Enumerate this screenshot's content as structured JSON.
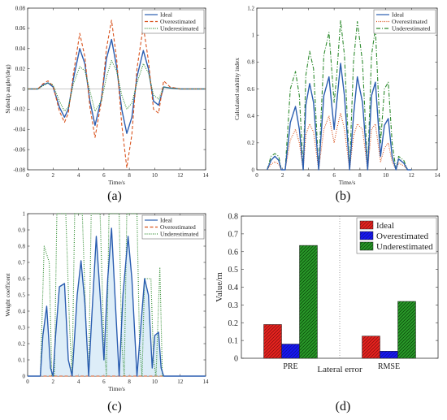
{
  "chart_data": [
    {
      "id": "a",
      "type": "line",
      "caption": "(a)",
      "xlabel": "Time/s",
      "ylabel": "Sideslip angle/(deg)",
      "xlim": [
        0,
        14
      ],
      "ylim": [
        -0.08,
        0.08
      ],
      "xticks": [
        0,
        2,
        4,
        6,
        8,
        10,
        12,
        14
      ],
      "yticks": [
        -0.08,
        -0.06,
        -0.04,
        -0.02,
        0,
        0.02,
        0.04,
        0.06,
        0.08
      ],
      "legend_position": "top-right",
      "series": [
        {
          "name": "Ideal",
          "color": "#2a5db0",
          "style": "solid",
          "x": [
            0,
            0.8,
            1.2,
            1.6,
            2.0,
            2.5,
            2.9,
            3.2,
            3.6,
            4.1,
            4.5,
            4.9,
            5.3,
            5.8,
            6.2,
            6.6,
            7.0,
            7.4,
            7.8,
            8.2,
            8.6,
            9.1,
            9.5,
            9.9,
            10.3,
            10.7,
            11.2,
            12,
            14
          ],
          "y": [
            0,
            0,
            0.004,
            0.006,
            0.002,
            -0.018,
            -0.028,
            -0.02,
            0.01,
            0.04,
            0.025,
            -0.012,
            -0.036,
            -0.01,
            0.03,
            0.049,
            0.022,
            -0.02,
            -0.044,
            -0.028,
            0.012,
            0.038,
            0.02,
            -0.012,
            -0.016,
            0.002,
            0.001,
            0,
            0
          ]
        },
        {
          "name": "Overestimated",
          "color": "#d9531e",
          "style": "dashed",
          "x": [
            0,
            0.8,
            1.2,
            1.6,
            2.0,
            2.5,
            2.9,
            3.2,
            3.6,
            4.1,
            4.5,
            4.9,
            5.3,
            5.8,
            6.2,
            6.6,
            7.0,
            7.4,
            7.8,
            8.2,
            8.6,
            9.1,
            9.5,
            9.9,
            10.3,
            10.7,
            11.2,
            12,
            14
          ],
          "y": [
            0,
            0,
            0.005,
            0.008,
            0.003,
            -0.022,
            -0.033,
            -0.024,
            0.015,
            0.055,
            0.032,
            -0.018,
            -0.048,
            -0.012,
            0.04,
            0.068,
            0.03,
            -0.035,
            -0.078,
            -0.045,
            0.02,
            0.062,
            0.028,
            -0.02,
            -0.024,
            0.008,
            0.002,
            0,
            0
          ]
        },
        {
          "name": "Underestimated",
          "color": "#2e8b2e",
          "style": "dotted",
          "x": [
            0,
            0.8,
            1.2,
            1.6,
            2.0,
            2.5,
            2.9,
            3.2,
            3.6,
            4.1,
            4.5,
            4.9,
            5.3,
            5.8,
            6.2,
            6.6,
            7.0,
            7.4,
            7.8,
            8.2,
            8.6,
            9.1,
            9.5,
            9.9,
            10.3,
            10.7,
            11.2,
            12,
            14
          ],
          "y": [
            0,
            0,
            0.003,
            0.006,
            0.004,
            -0.012,
            -0.022,
            -0.018,
            0.005,
            0.022,
            0.018,
            -0.002,
            -0.022,
            -0.012,
            0.012,
            0.028,
            0.018,
            -0.006,
            -0.02,
            -0.014,
            0.006,
            0.025,
            0.016,
            -0.006,
            -0.01,
            0.002,
            0.001,
            0,
            0
          ]
        }
      ]
    },
    {
      "id": "b",
      "type": "line",
      "caption": "(b)",
      "xlabel": "Time/s",
      "ylabel": "Calculated stability index",
      "xlim": [
        0,
        14
      ],
      "ylim": [
        0,
        1.2
      ],
      "xticks": [
        0,
        2,
        4,
        6,
        8,
        10,
        12,
        14
      ],
      "yticks": [
        0,
        0.2,
        0.4,
        0.6,
        0.8,
        1,
        1.2
      ],
      "legend_position": "top-right",
      "series": [
        {
          "name": "Ideal",
          "color": "#2a5db0",
          "style": "solid",
          "x": [
            0.8,
            1.1,
            1.4,
            1.7,
            1.9,
            2.2,
            2.6,
            3.0,
            3.3,
            3.6,
            3.8,
            4.1,
            4.4,
            4.8,
            5.2,
            5.6,
            6.0,
            6.2,
            6.5,
            6.8,
            7.2,
            7.5,
            7.8,
            8.2,
            8.6,
            8.9,
            9.2,
            9.6,
            9.9,
            10.2,
            10.5,
            10.8,
            11.0,
            11.4,
            11.7,
            12
          ],
          "y": [
            0,
            0.07,
            0.1,
            0.07,
            0,
            0,
            0.35,
            0.47,
            0.3,
            0,
            0.48,
            0.64,
            0.5,
            0,
            0.55,
            0.69,
            0.3,
            0.5,
            0.79,
            0.55,
            0,
            0.4,
            0.69,
            0.5,
            0,
            0.55,
            0.65,
            0.1,
            0.33,
            0.38,
            0.1,
            0,
            0.08,
            0.05,
            0,
            0
          ]
        },
        {
          "name": "Overestimated",
          "color": "#d9531e",
          "style": "dotted",
          "x": [
            0.8,
            1.1,
            1.4,
            1.7,
            1.9,
            2.2,
            2.6,
            3.0,
            3.3,
            3.6,
            3.8,
            4.1,
            4.4,
            4.8,
            5.2,
            5.6,
            6.0,
            6.2,
            6.5,
            6.8,
            7.2,
            7.5,
            7.8,
            8.2,
            8.6,
            8.9,
            9.2,
            9.6,
            9.9,
            10.2,
            10.5,
            10.8,
            11.0,
            11.4,
            11.7,
            12
          ],
          "y": [
            0,
            0.04,
            0.06,
            0.04,
            0,
            0,
            0.22,
            0.3,
            0.2,
            0,
            0.26,
            0.34,
            0.28,
            0,
            0.3,
            0.4,
            0.2,
            0.3,
            0.42,
            0.3,
            0,
            0.25,
            0.34,
            0.3,
            0,
            0.3,
            0.34,
            0.06,
            0.16,
            0.2,
            0.06,
            0,
            0.05,
            0.03,
            0,
            0
          ]
        },
        {
          "name": "Underestimated",
          "color": "#2e8b2e",
          "style": "dashdot",
          "x": [
            0.8,
            1.1,
            1.4,
            1.7,
            1.9,
            2.2,
            2.6,
            3.0,
            3.3,
            3.6,
            3.8,
            4.1,
            4.4,
            4.8,
            5.2,
            5.6,
            6.0,
            6.2,
            6.5,
            6.8,
            7.2,
            7.5,
            7.8,
            8.2,
            8.6,
            8.9,
            9.2,
            9.6,
            9.9,
            10.2,
            10.5,
            10.8,
            11.0,
            11.4,
            11.7,
            12
          ],
          "y": [
            0,
            0.1,
            0.12,
            0.1,
            0,
            0,
            0.6,
            0.73,
            0.55,
            0,
            0.7,
            0.88,
            0.75,
            0,
            0.85,
            1.02,
            0.5,
            0.7,
            1.11,
            0.85,
            0,
            0.8,
            1.1,
            0.8,
            0,
            0.85,
            1.05,
            0.2,
            0.6,
            0.65,
            0.2,
            0,
            0.1,
            0.07,
            0,
            0
          ]
        }
      ]
    },
    {
      "id": "c",
      "type": "line",
      "caption": "(c)",
      "xlabel": "Time/s",
      "ylabel": "Weight coefficent",
      "xlim": [
        0,
        14
      ],
      "ylim": [
        0,
        1
      ],
      "xticks": [
        0,
        2,
        4,
        6,
        8,
        10,
        12,
        14
      ],
      "yticks": [
        0,
        0.1,
        0.2,
        0.3,
        0.4,
        0.5,
        0.6,
        0.7,
        0.8,
        0.9,
        1
      ],
      "legend_position": "top-right",
      "series": [
        {
          "name": "Ideal",
          "color": "#2a5db0",
          "style": "solid",
          "x": [
            0,
            1.0,
            1.2,
            1.5,
            1.8,
            2.0,
            2.2,
            2.5,
            2.9,
            3.2,
            3.5,
            3.9,
            4.2,
            4.5,
            4.8,
            5.0,
            5.4,
            5.7,
            6.0,
            6.3,
            6.6,
            6.9,
            7.2,
            7.5,
            7.9,
            8.2,
            8.6,
            8.9,
            9.2,
            9.5,
            9.8,
            10.0,
            10.3,
            10.5,
            10.7,
            14
          ],
          "y": [
            0,
            0,
            0.25,
            0.43,
            0.05,
            0,
            0.25,
            0.55,
            0.57,
            0.1,
            0,
            0.5,
            0.71,
            0.45,
            0,
            0.3,
            0.86,
            0.5,
            0.1,
            0.6,
            0.91,
            0.45,
            0,
            0.5,
            0.86,
            0.6,
            0,
            0.3,
            0.6,
            0.5,
            0.05,
            0.25,
            0.27,
            0.05,
            0,
            0
          ]
        },
        {
          "name": "Overestimated",
          "color": "#d9531e",
          "style": "dashed",
          "x": [
            0,
            14
          ],
          "y": [
            0,
            0
          ]
        },
        {
          "name": "Underestimated",
          "color": "#2e8b2e",
          "style": "dotted",
          "x": [
            0,
            1.0,
            1.3,
            1.7,
            1.9,
            2.1,
            2.3,
            3.0,
            3.3,
            3.5,
            3.7,
            4.3,
            4.6,
            4.8,
            5.0,
            5.7,
            6.0,
            6.2,
            6.4,
            7.2,
            7.4,
            7.6,
            7.8,
            8.6,
            8.8,
            9.0,
            9.2,
            9.7,
            9.9,
            10.1,
            10.4,
            10.6,
            14
          ],
          "y": [
            0,
            0,
            0.8,
            0.7,
            0,
            0,
            1,
            1,
            0.3,
            0,
            1,
            1,
            0.3,
            0,
            1,
            1,
            0.2,
            0,
            1,
            1,
            0.2,
            0,
            1,
            1,
            0.2,
            0,
            0.6,
            0.6,
            0.1,
            0,
            0.67,
            0,
            0
          ]
        }
      ]
    },
    {
      "id": "d",
      "type": "bar",
      "caption": "(d)",
      "xlabel": "Lateral error",
      "ylabel": "Value/m",
      "categories": [
        "PRE",
        "RMSE"
      ],
      "ylim": [
        0,
        0.8
      ],
      "yticks": [
        0,
        0.1,
        0.2,
        0.3,
        0.4,
        0.5,
        0.6,
        0.7,
        0.8
      ],
      "legend_position": "top-right",
      "series": [
        {
          "name": "Ideal",
          "color": "#e8231f",
          "values": [
            0.19,
            0.125
          ]
        },
        {
          "name": "Overestimated",
          "color": "#1818f0",
          "values": [
            0.08,
            0.04
          ]
        },
        {
          "name": "Underestimated",
          "color": "#1d8a1d",
          "values": [
            0.635,
            0.32
          ]
        }
      ]
    }
  ]
}
